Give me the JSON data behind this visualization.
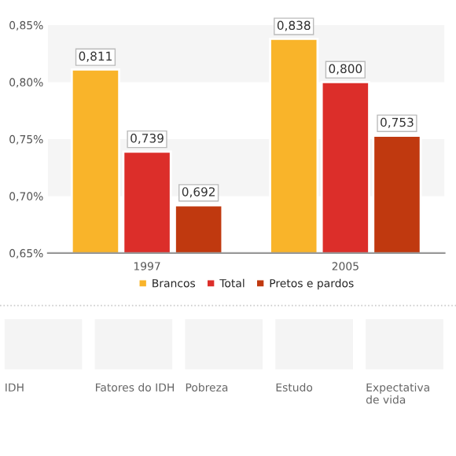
{
  "chart_data": {
    "type": "bar",
    "categories": [
      "1997",
      "2005"
    ],
    "series": [
      {
        "name": "Brancos",
        "color": "#f9b42a",
        "values": [
          0.811,
          0.838
        ],
        "value_labels": [
          "0,811",
          "0,838"
        ]
      },
      {
        "name": "Total",
        "color": "#dc2e2a",
        "values": [
          0.739,
          0.8
        ],
        "value_labels": [
          "0,739",
          "0,800"
        ]
      },
      {
        "name": "Pretos e pardos",
        "color": "#c0390f",
        "values": [
          0.692,
          0.753
        ],
        "value_labels": [
          "0,692",
          "0,753"
        ]
      }
    ],
    "ylim": [
      0.65,
      0.85
    ],
    "yticks": [
      {
        "value": 0.65,
        "label": "0,65%"
      },
      {
        "value": 0.7,
        "label": "0,70%"
      },
      {
        "value": 0.75,
        "label": "0,75%"
      },
      {
        "value": 0.8,
        "label": "0,80%"
      },
      {
        "value": 0.85,
        "label": "0,85%"
      }
    ],
    "bands": [
      {
        "axis": "y",
        "from": 0.7,
        "to": 0.75,
        "color": "#f5f5f5"
      },
      {
        "axis": "y",
        "from": 0.8,
        "to": 0.85,
        "color": "#f5f5f5"
      }
    ],
    "legend": "bottom",
    "grid": false,
    "annotations": [
      "IDH",
      "Fatores do IDH",
      "Pobreza",
      "Estudo",
      "Expectativa de vida"
    ]
  }
}
